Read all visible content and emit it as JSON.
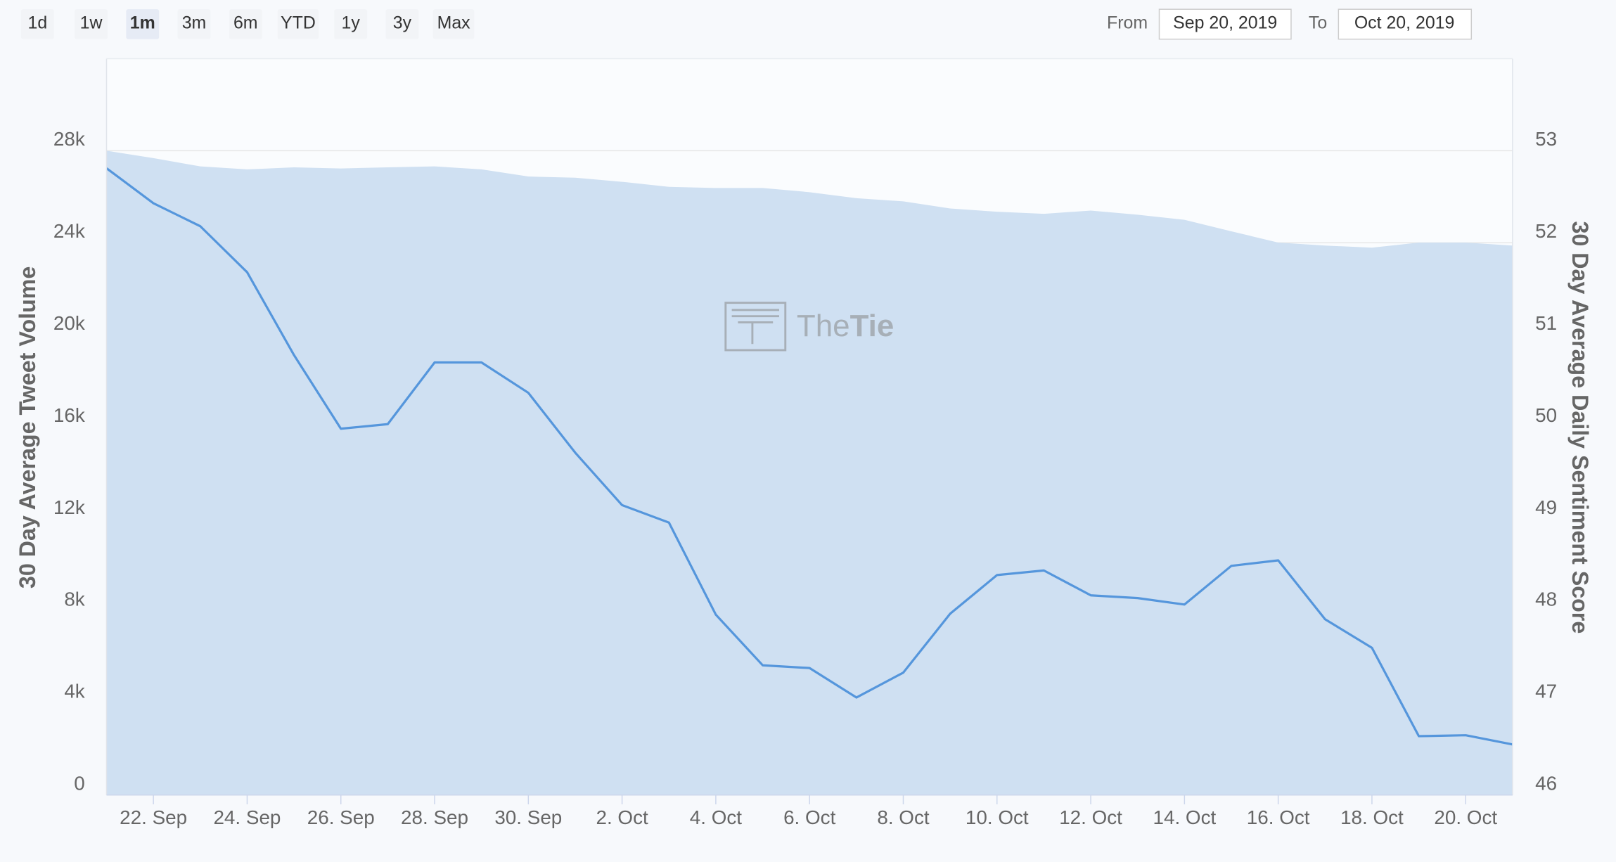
{
  "controls": {
    "range_buttons": [
      "1d",
      "1w",
      "1m",
      "3m",
      "6m",
      "YTD",
      "1y",
      "3y",
      "Max"
    ],
    "selected": "1m",
    "from_label": "From",
    "from_date": "Sep 20, 2019",
    "to_label": "To",
    "to_date": "Oct 20, 2019"
  },
  "watermark": [
    "The",
    "Tie"
  ],
  "chart_data": {
    "type": "line",
    "categories": [
      null,
      "22. Sep",
      null,
      "24. Sep",
      null,
      "26. Sep",
      null,
      "28. Sep",
      null,
      "30. Sep",
      null,
      "2. Oct",
      null,
      "4. Oct",
      null,
      "6. Oct",
      null,
      "8. Oct",
      null,
      "10. Oct",
      null,
      "12. Oct",
      null,
      "14. Oct",
      null,
      "16. Oct",
      null,
      "18. Oct",
      null,
      "20. Oct",
      null
    ],
    "y_label": "30 Day Average Tweet Volume",
    "y2_label": "30 Day Average Daily Sentiment Score",
    "ylim": [
      0,
      32000
    ],
    "yticks": [
      0,
      {
        "value": 4000,
        "label": "4k"
      },
      {
        "value": 8000,
        "label": "8k"
      },
      {
        "value": 12000,
        "label": "12k"
      },
      {
        "value": 16000,
        "label": "16k"
      },
      {
        "value": 20000,
        "label": "20k"
      },
      {
        "value": 24000,
        "label": "24k"
      },
      {
        "value": 28000,
        "label": "28k"
      }
    ],
    "y2lim": [
      46,
      54
    ],
    "y2ticks": [
      46,
      47,
      48,
      49,
      50,
      51,
      52,
      53
    ],
    "grid": true,
    "series": [
      {
        "type": "area",
        "color": "#cfe0f2",
        "values": [
          28000,
          27680,
          27320,
          27190,
          27280,
          27230,
          27280,
          27320,
          27190,
          26880,
          26830,
          26650,
          26430,
          26380,
          26380,
          26200,
          25940,
          25800,
          25490,
          25350,
          25260,
          25400,
          25220,
          25000,
          24500,
          24010,
          23880,
          23790,
          24010,
          24010,
          23880
        ]
      },
      {
        "type": "line",
        "axis": "y2",
        "color": "#5596dc",
        "values": [
          52.81,
          52.43,
          52.18,
          51.68,
          50.78,
          49.98,
          50.03,
          50.7,
          50.7,
          50.37,
          49.72,
          49.15,
          48.96,
          47.96,
          47.41,
          47.38,
          47.06,
          47.33,
          47.97,
          48.39,
          48.44,
          48.17,
          48.14,
          48.07,
          48.49,
          48.55,
          47.91,
          47.6,
          46.64,
          46.65,
          46.55
        ]
      }
    ]
  }
}
